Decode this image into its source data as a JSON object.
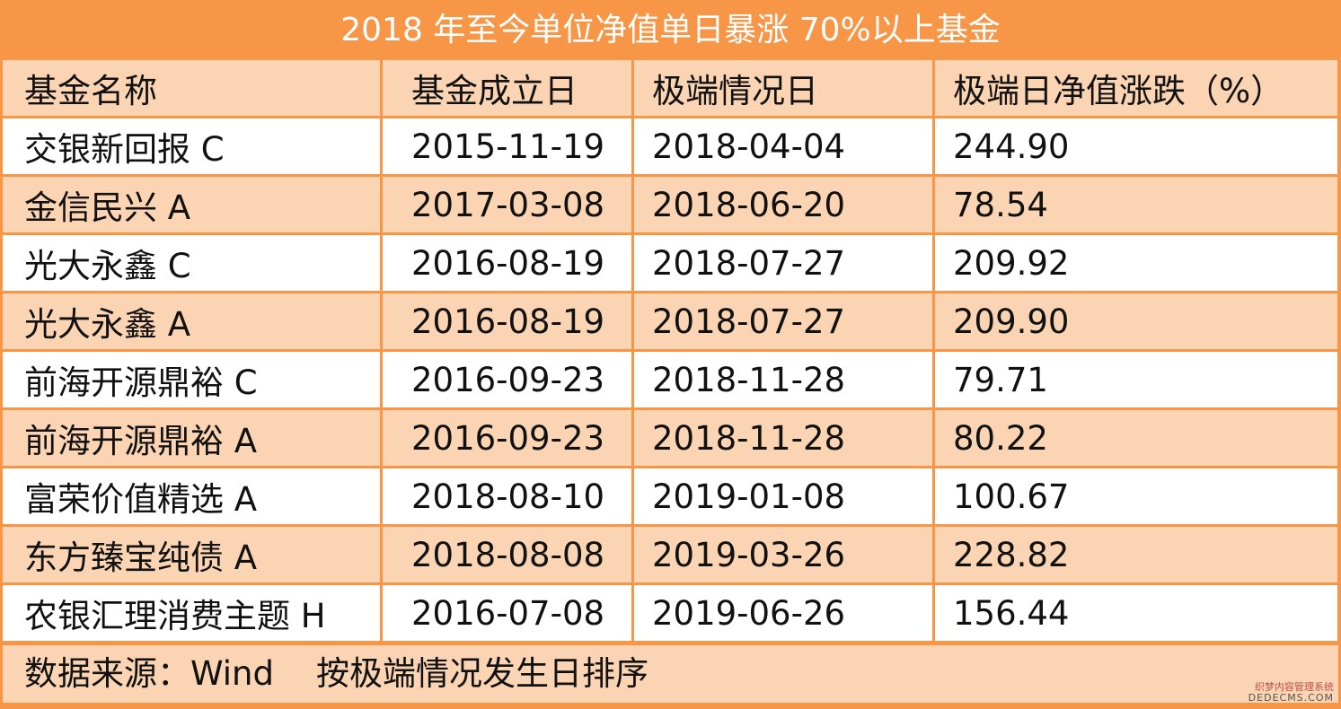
{
  "table": {
    "title": "2018 年至今单位净值单日暴涨 70%以上基金",
    "headers": [
      "基金名称",
      "基金成立日",
      "极端情况日",
      "极端日净值涨跌（%）"
    ],
    "rows": [
      [
        "交银新回报 C",
        "2015-11-19",
        "2018-04-04",
        "244.90"
      ],
      [
        "金信民兴 A",
        "2017-03-08",
        "2018-06-20",
        "78.54"
      ],
      [
        "光大永鑫 C",
        "2016-08-19",
        "2018-07-27",
        "209.92"
      ],
      [
        "光大永鑫 A",
        "2016-08-19",
        "2018-07-27",
        "209.90"
      ],
      [
        "前海开源鼎裕 C",
        "2016-09-23",
        "2018-11-28",
        "79.71"
      ],
      [
        "前海开源鼎裕 A",
        "2016-09-23",
        "2018-11-28",
        "80.22"
      ],
      [
        "富荣价值精选 A",
        "2018-08-10",
        "2019-01-08",
        "100.67"
      ],
      [
        "东方臻宝纯债 A",
        "2018-08-08",
        "2019-03-26",
        "228.82"
      ],
      [
        "农银汇理消费主题 H",
        "2016-07-08",
        "2019-06-26",
        "156.44"
      ]
    ],
    "footer": "数据来源：Wind    按极端情况发生日排序"
  },
  "watermark": {
    "line1": "织梦内容管理系统",
    "line2": "DEDECMS.COM"
  },
  "colors": {
    "accent": "#f79646",
    "band": "#fbd4b4",
    "white": "#ffffff",
    "text": "#111111"
  }
}
